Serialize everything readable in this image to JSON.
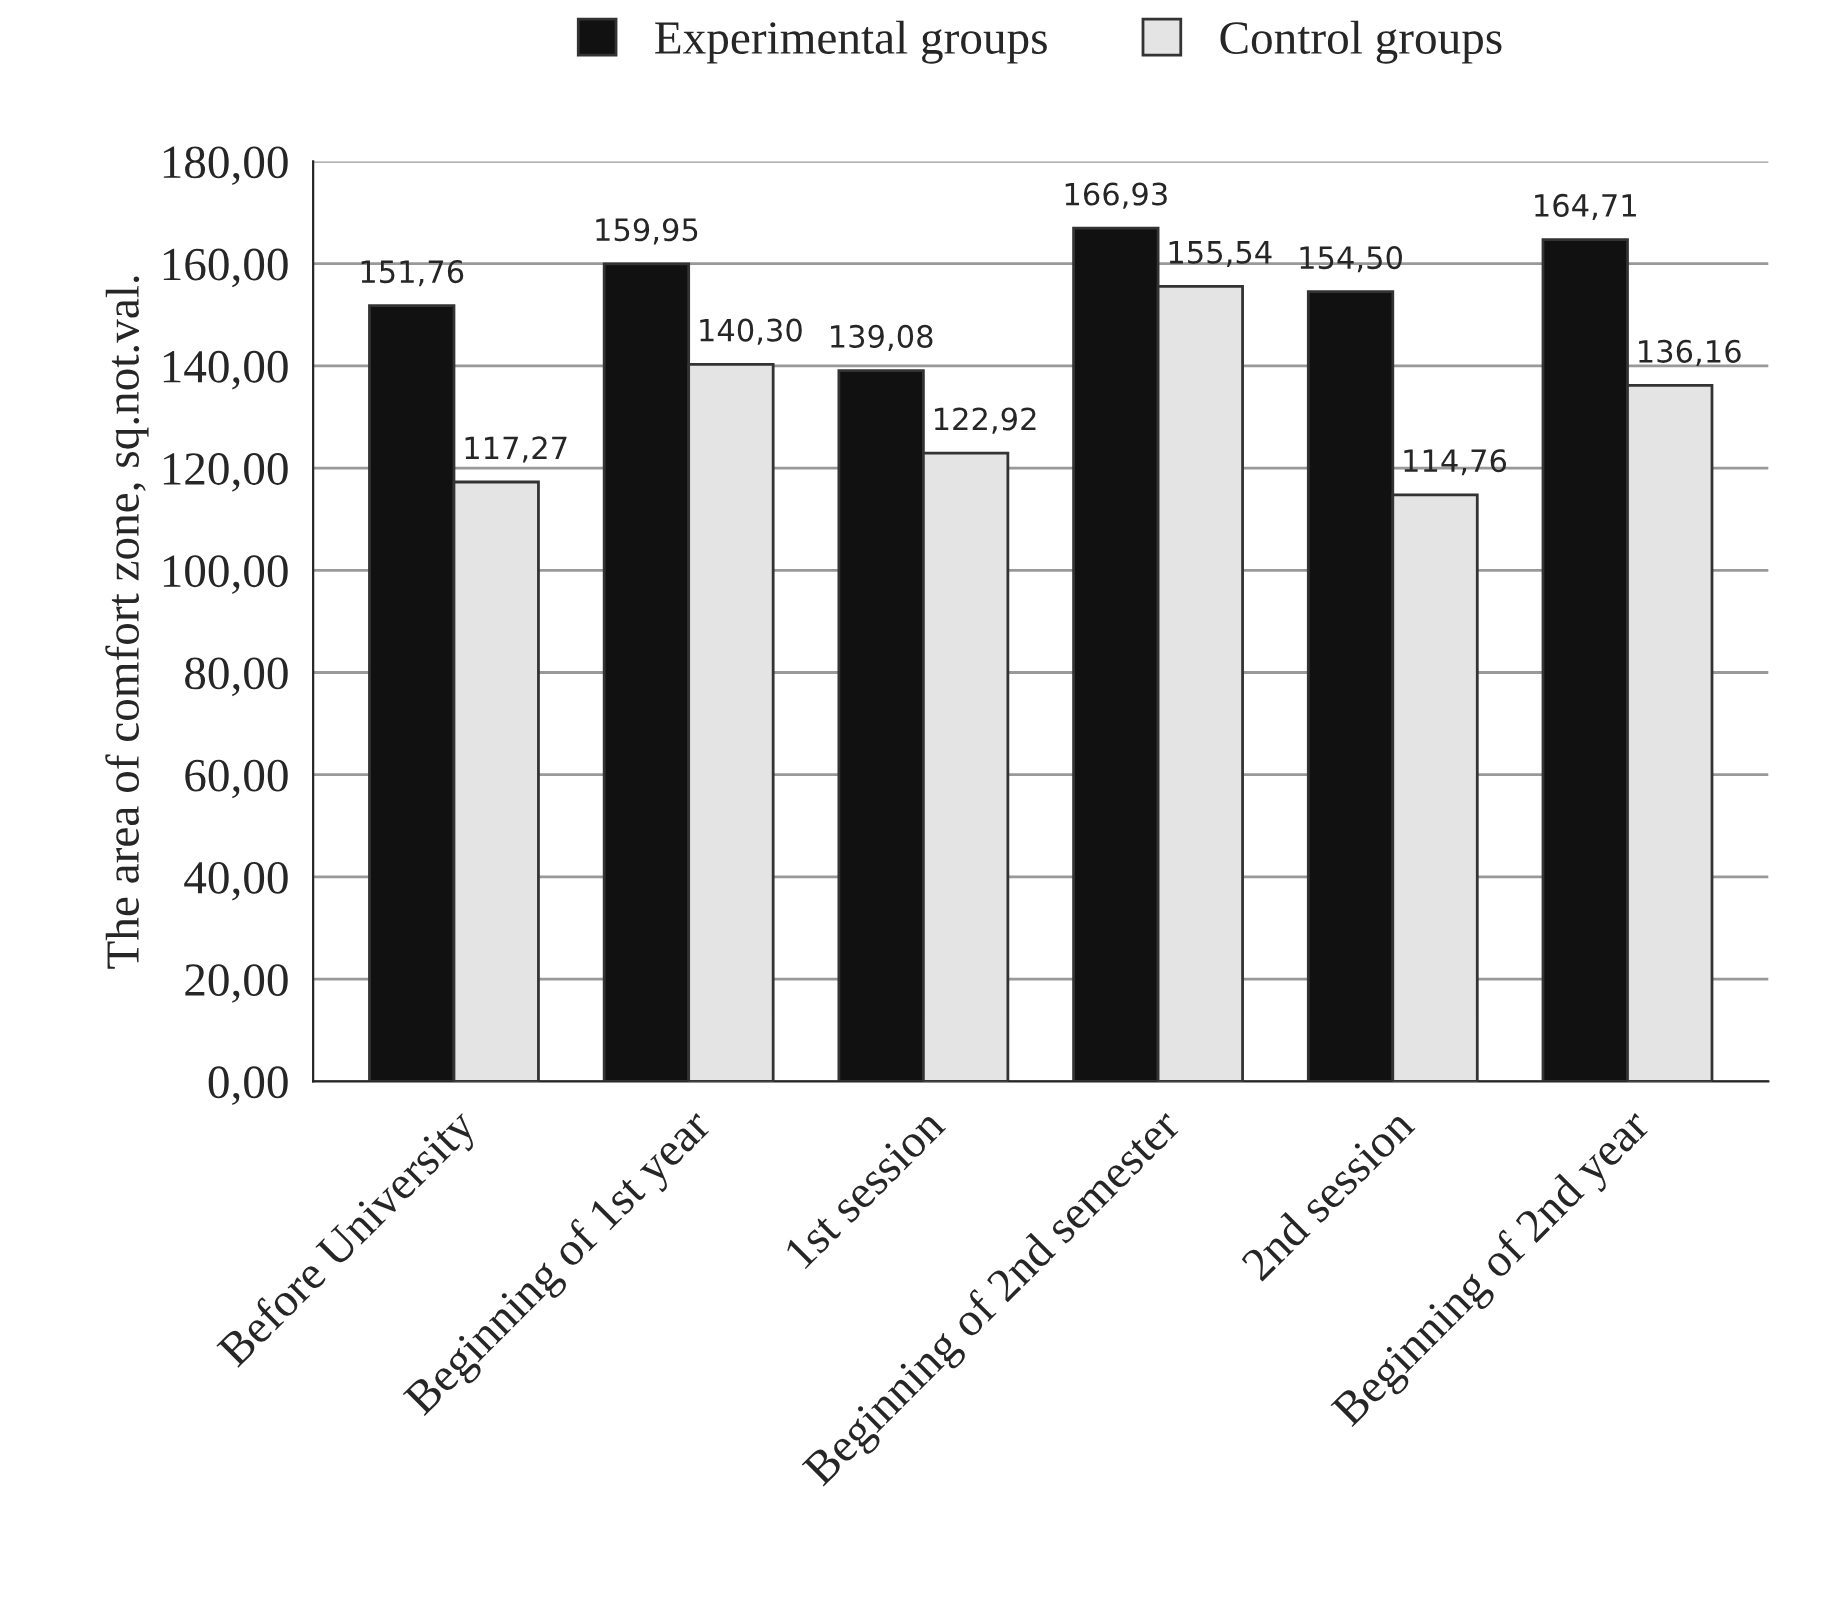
{
  "chart_data": {
    "type": "bar",
    "ylabel": "The area of comfort zone, sq.not.val.",
    "categories": [
      "Before University",
      "Beginning of 1st year",
      "1st session",
      "Beginning of 2nd semester",
      "2nd session",
      "Beginning of 2nd year"
    ],
    "series": [
      {
        "name": "Experimental groups",
        "color": "#111111",
        "values": [
          151.76,
          159.95,
          139.08,
          166.93,
          154.5,
          164.71
        ],
        "value_labels": [
          "151,76",
          "159,95",
          "139,08",
          "166,93",
          "154,50",
          "164,71"
        ]
      },
      {
        "name": "Control groups",
        "color": "#e4e4e4",
        "values": [
          117.27,
          140.3,
          122.92,
          155.54,
          114.76,
          136.16
        ],
        "value_labels": [
          "117,27",
          "140,30",
          "122,92",
          "155,54",
          "114,76",
          "136,16"
        ]
      }
    ],
    "ylim": [
      0,
      180
    ],
    "yticks": [
      {
        "value": 0,
        "label": "0,00"
      },
      {
        "value": 20,
        "label": "20,00"
      },
      {
        "value": 40,
        "label": "40,00"
      },
      {
        "value": 60,
        "label": "60,00"
      },
      {
        "value": 80,
        "label": "80,00"
      },
      {
        "value": 100,
        "label": "100,00"
      },
      {
        "value": 120,
        "label": "120,00"
      },
      {
        "value": 140,
        "label": "140,00"
      },
      {
        "value": 160,
        "label": "160,00"
      },
      {
        "value": 180,
        "label": "180,00"
      }
    ],
    "grid": "y",
    "legend": "top"
  }
}
